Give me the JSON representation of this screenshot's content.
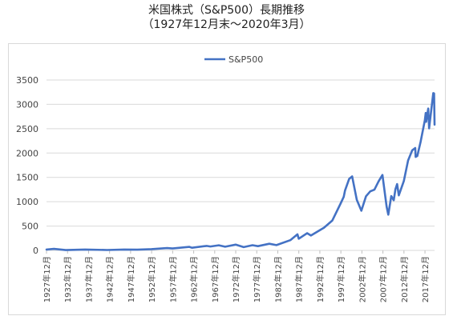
{
  "chart_data": {
    "type": "line",
    "title": "米国株式（S&P500）長期推移",
    "subtitle": "（1927年12月末～2020年3月）",
    "xlabel": "",
    "ylabel": "",
    "ylim": [
      0,
      3500
    ],
    "yticks": [
      "0",
      "500",
      "1000",
      "1500",
      "2000",
      "2500",
      "3000",
      "3500"
    ],
    "xticks": [
      "1927年12月",
      "1932年12月",
      "1937年12月",
      "1942年12月",
      "1947年12月",
      "1952年12月",
      "1957年12月",
      "1962年12月",
      "1967年12月",
      "1972年12月",
      "1977年12月",
      "1982年12月",
      "1987年12月",
      "1992年12月",
      "1997年12月",
      "2002年12月",
      "2007年12月",
      "2012年12月",
      "2017年12月"
    ],
    "grid": "horizontal",
    "legend_position": "top-center",
    "color": "#4472C4",
    "series": [
      {
        "name": "S&P500",
        "points": [
          [
            1927.92,
            18
          ],
          [
            1929.7,
            31
          ],
          [
            1932.5,
            7
          ],
          [
            1937.1,
            18
          ],
          [
            1942.3,
            8
          ],
          [
            1946.4,
            18
          ],
          [
            1949.5,
            15
          ],
          [
            1952.9,
            26
          ],
          [
            1956.6,
            47
          ],
          [
            1957.9,
            40
          ],
          [
            1961.9,
            72
          ],
          [
            1962.5,
            55
          ],
          [
            1966.0,
            92
          ],
          [
            1966.9,
            80
          ],
          [
            1968.9,
            105
          ],
          [
            1970.4,
            75
          ],
          [
            1972.9,
            119
          ],
          [
            1974.8,
            68
          ],
          [
            1976.9,
            107
          ],
          [
            1978.2,
            87
          ],
          [
            1980.9,
            136
          ],
          [
            1982.6,
            108
          ],
          [
            1985.9,
            210
          ],
          [
            1987.6,
            330
          ],
          [
            1987.9,
            240
          ],
          [
            1989.9,
            353
          ],
          [
            1990.8,
            305
          ],
          [
            1993.9,
            466
          ],
          [
            1995.9,
            615
          ],
          [
            1997.9,
            970
          ],
          [
            1998.6,
            1100
          ],
          [
            1998.9,
            1229
          ],
          [
            1999.9,
            1469
          ],
          [
            2000.6,
            1520
          ],
          [
            2001.7,
            1040
          ],
          [
            2002.8,
            815
          ],
          [
            2003.9,
            1112
          ],
          [
            2004.9,
            1212
          ],
          [
            2005.9,
            1248
          ],
          [
            2006.9,
            1418
          ],
          [
            2007.8,
            1549
          ],
          [
            2008.8,
            900
          ],
          [
            2009.2,
            735
          ],
          [
            2009.9,
            1115
          ],
          [
            2010.5,
            1030
          ],
          [
            2010.9,
            1257
          ],
          [
            2011.3,
            1363
          ],
          [
            2011.7,
            1131
          ],
          [
            2012.9,
            1426
          ],
          [
            2013.9,
            1848
          ],
          [
            2014.9,
            2058
          ],
          [
            2015.6,
            2104
          ],
          [
            2015.7,
            1920
          ],
          [
            2016.1,
            1940
          ],
          [
            2016.9,
            2238
          ],
          [
            2017.9,
            2673
          ],
          [
            2018.1,
            2823
          ],
          [
            2018.2,
            2640
          ],
          [
            2018.7,
            2914
          ],
          [
            2018.9,
            2506
          ],
          [
            2019.5,
            2941
          ],
          [
            2019.9,
            3230
          ],
          [
            2020.08,
            3225
          ],
          [
            2020.2,
            2585
          ]
        ]
      }
    ]
  }
}
